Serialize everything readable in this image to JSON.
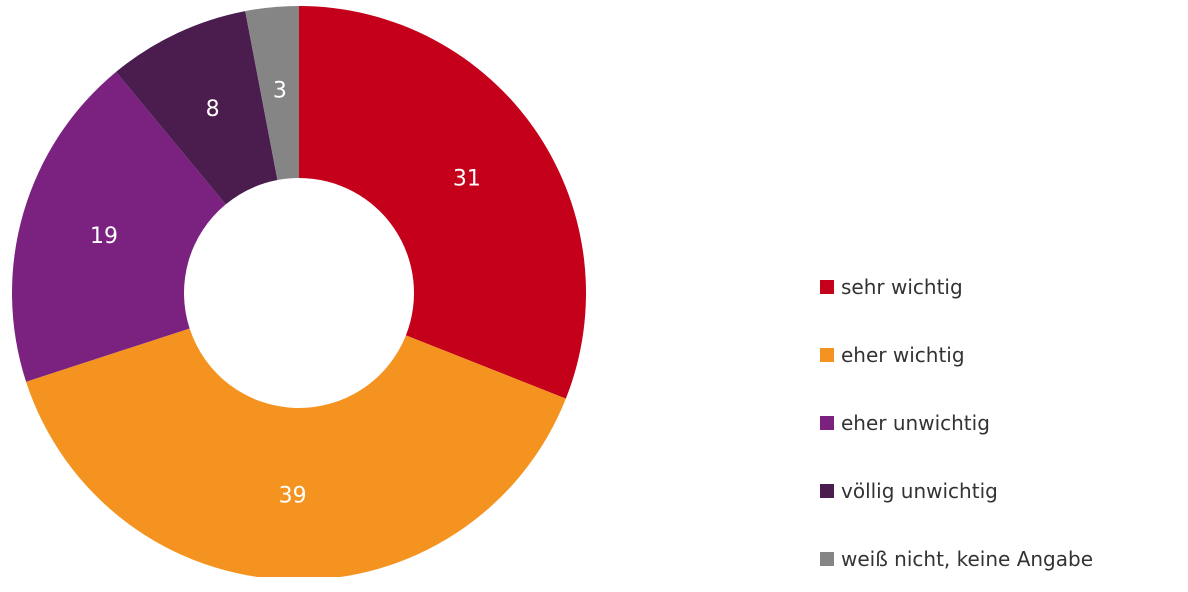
{
  "chart_data": {
    "type": "pie",
    "title": "",
    "donut": true,
    "categories": [
      "sehr wichtig",
      "eher wichtig",
      "eher unwichtig",
      "völlig unwichtig",
      "weiß nicht, keine Angabe"
    ],
    "values": [
      31,
      39,
      19,
      8,
      3
    ],
    "data_labels": [
      "31",
      "39",
      "19",
      "8",
      "3"
    ],
    "colors": [
      "#c4001a",
      "#f59320",
      "#7b2280",
      "#4a1d4e",
      "#858585"
    ],
    "legend": {
      "placement": "right",
      "entries": [
        "sehr wichtig",
        "eher wichtig",
        "eher unwichtig",
        "völlig unwichtig",
        "weiß nicht, keine Angabe"
      ]
    }
  }
}
